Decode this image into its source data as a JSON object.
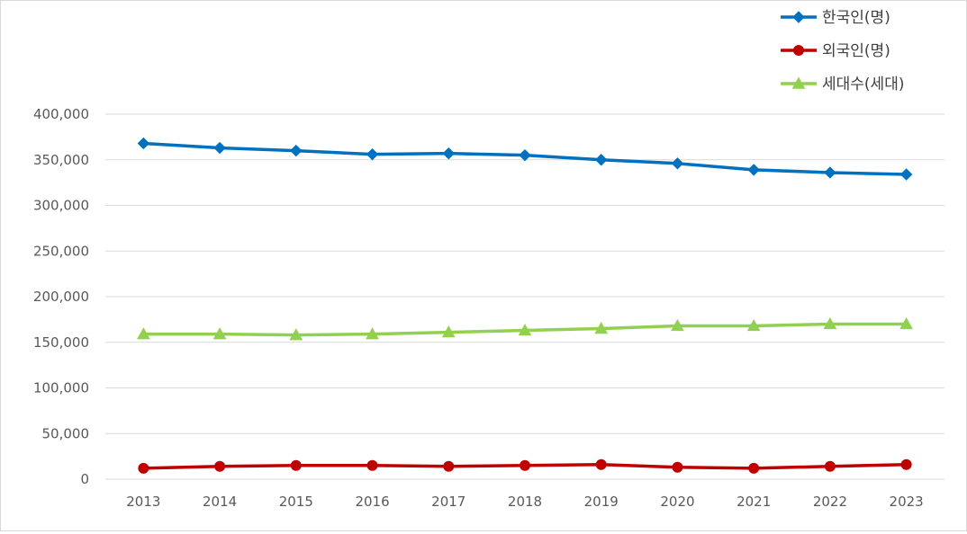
{
  "chart_data": {
    "type": "line",
    "title": "",
    "xlabel": "",
    "ylabel": "",
    "categories": [
      "2013",
      "2014",
      "2015",
      "2016",
      "2017",
      "2018",
      "2019",
      "2020",
      "2021",
      "2022",
      "2023"
    ],
    "ylim": [
      0,
      400000
    ],
    "yticks": [
      0,
      50000,
      100000,
      150000,
      200000,
      250000,
      300000,
      350000,
      400000
    ],
    "ytick_labels": [
      "0",
      "50,000",
      "100,000",
      "150,000",
      "200,000",
      "250,000",
      "300,000",
      "350,000",
      "400,000"
    ],
    "grid": true,
    "legend_position": "top-right",
    "series": [
      {
        "name": "한국인(명)",
        "color": "#0070c0",
        "marker": "diamond",
        "values": [
          368000,
          363000,
          360000,
          356000,
          357000,
          355000,
          350000,
          346000,
          339000,
          336000,
          334000
        ]
      },
      {
        "name": "외국인(명)",
        "color": "#c00000",
        "marker": "circle",
        "values": [
          12000,
          14000,
          15000,
          15000,
          14000,
          15000,
          16000,
          13000,
          12000,
          14000,
          16000
        ]
      },
      {
        "name": "세대수(세대)",
        "color": "#92d050",
        "marker": "triangle",
        "values": [
          159000,
          159000,
          158000,
          159000,
          161000,
          163000,
          165000,
          168000,
          168000,
          170000,
          170000
        ]
      }
    ]
  }
}
